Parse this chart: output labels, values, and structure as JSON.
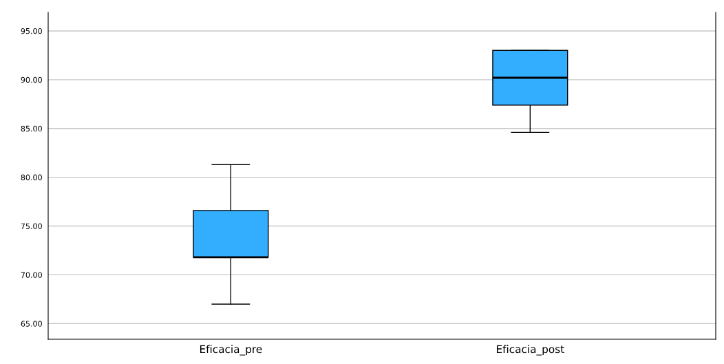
{
  "chart_data": {
    "type": "box",
    "categories": [
      "Eficacia_pre",
      "Eficacia_post"
    ],
    "boxes": [
      {
        "low": 67.0,
        "q1": 71.8,
        "median": 71.8,
        "q3": 76.6,
        "high": 81.3
      },
      {
        "low": 84.6,
        "q1": 87.4,
        "median": 90.2,
        "q3": 93.0,
        "high": 93.0
      }
    ],
    "color": "#33aeff",
    "ylim": [
      63.4,
      96.9
    ],
    "yticks": [
      {
        "value": 65,
        "label": "65.00"
      },
      {
        "value": 70,
        "label": "70.00"
      },
      {
        "value": 75,
        "label": "75.00"
      },
      {
        "value": 80,
        "label": "80.00"
      },
      {
        "value": 85,
        "label": "85.00"
      },
      {
        "value": 90,
        "label": "90.00"
      },
      {
        "value": 95,
        "label": "95.00"
      }
    ],
    "grid": "y"
  }
}
